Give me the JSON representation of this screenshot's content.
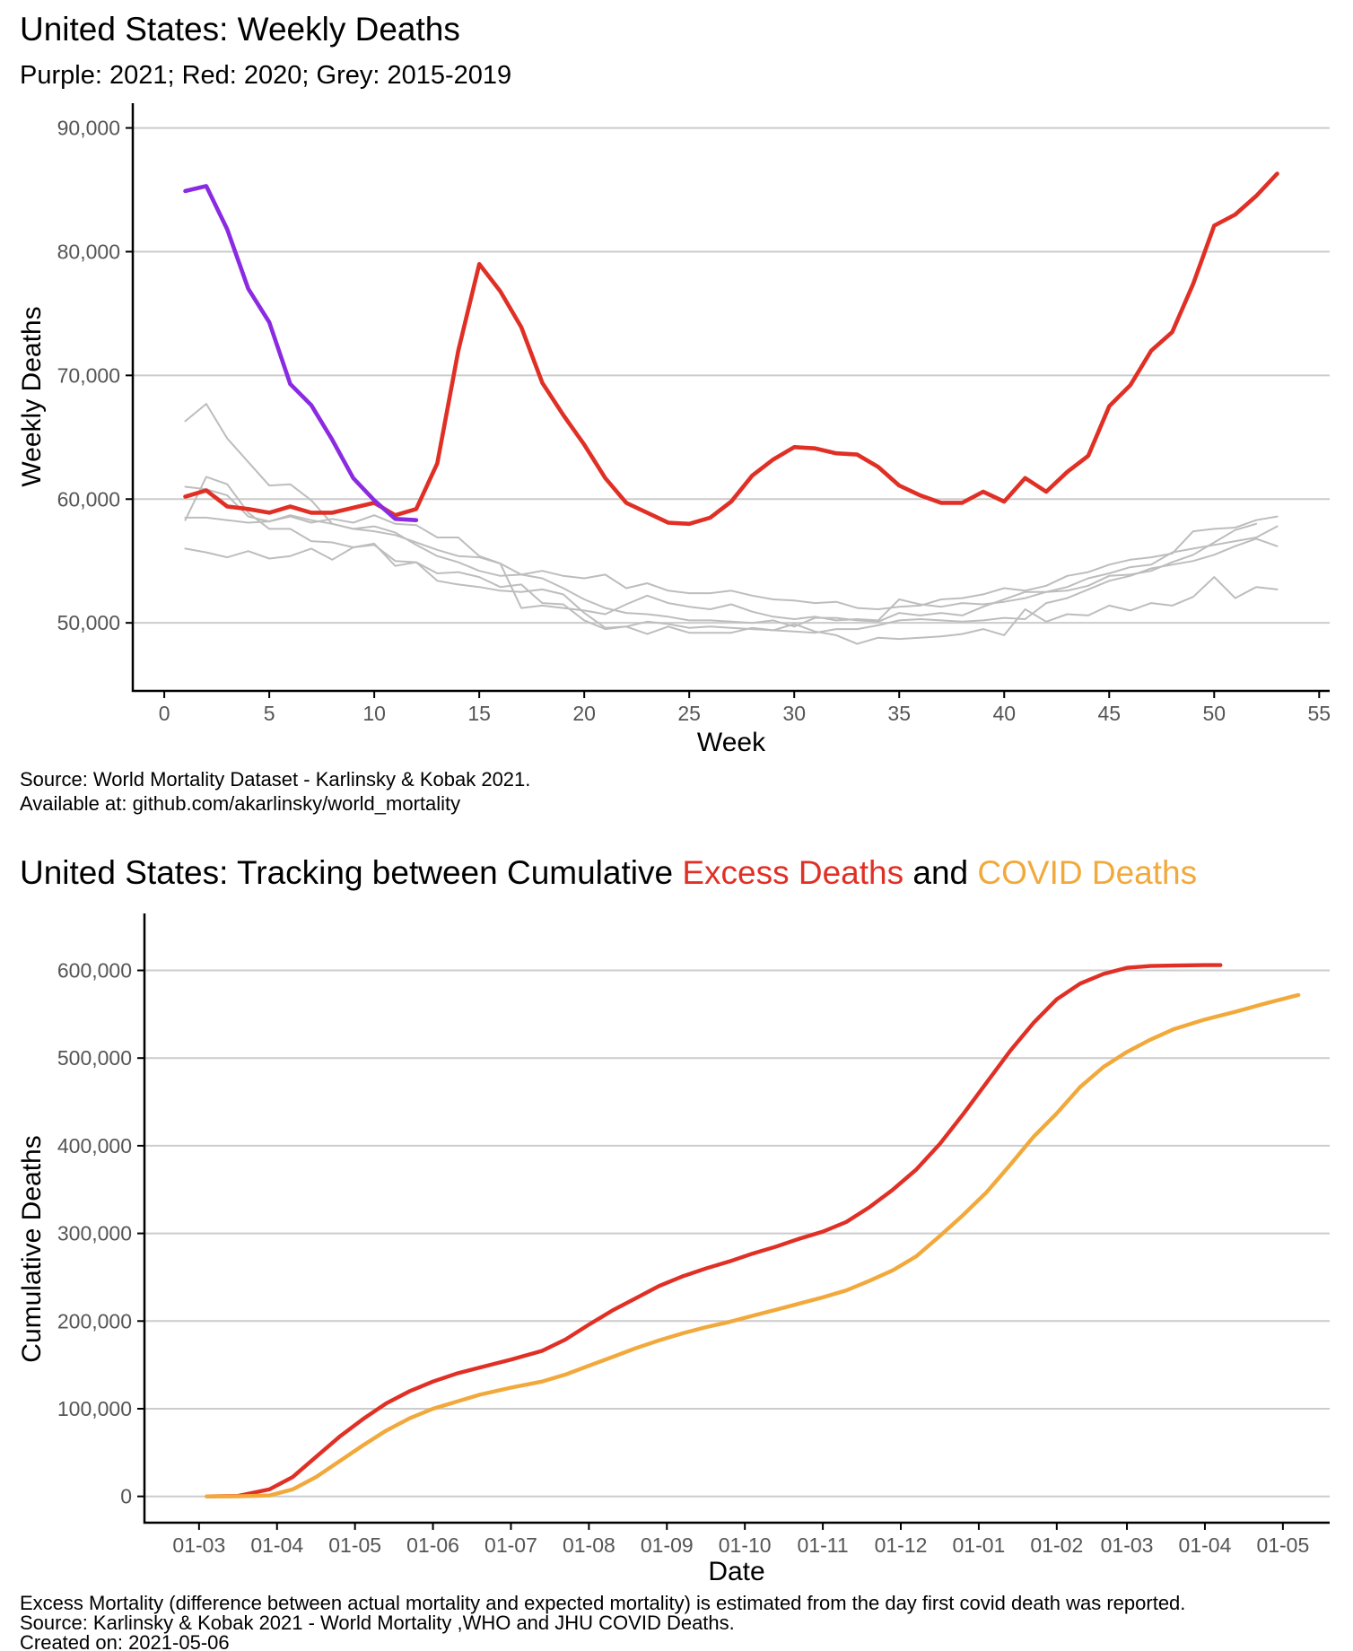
{
  "colors": {
    "year_2021": "#8A2BE2",
    "year_2020": "#E03026",
    "baseline": "#BDBDBD",
    "excess": "#E03026",
    "covid": "#F2A93B"
  },
  "chart1": {
    "title": "United States: Weekly Deaths",
    "subtitle": "Purple: 2021; Red: 2020; Grey: 2015-2019",
    "source_line1": "Source: World Mortality Dataset - Karlinsky & Kobak 2021.",
    "source_line2": "Available at: github.com/akarlinsky/world_mortality"
  },
  "chart2": {
    "title_part1": "United States: Tracking between Cumulative ",
    "title_part2": "Excess Deaths",
    "title_part3": " and ",
    "title_part4": "COVID Deaths",
    "footnote_line1": "Excess Mortality (difference between actual mortality and expected mortality) is estimated from the day first covid death was reported.",
    "footnote_line2": "Source: Karlinsky & Kobak 2021 - World Mortality ,WHO and JHU COVID Deaths.",
    "footnote_line3": "Created on: 2021-05-06"
  },
  "chart_data": [
    {
      "type": "line",
      "xlabel": "Week",
      "ylabel": "Weekly Deaths",
      "xlim": [
        -1.5,
        55.5
      ],
      "ylim": [
        44500,
        92000
      ],
      "x_ticks": [
        0,
        5,
        10,
        15,
        20,
        25,
        30,
        35,
        40,
        45,
        50,
        55
      ],
      "y_ticks": [
        50000,
        60000,
        70000,
        80000,
        90000
      ],
      "y_tick_labels": [
        "50,000",
        "60,000",
        "70,000",
        "80,000",
        "90,000"
      ],
      "grid": "horizontal",
      "series": [
        {
          "key": "2015",
          "color_key": "baseline",
          "x_start": 1,
          "values": [
            56000,
            55700,
            55300,
            55800,
            55200,
            55400,
            56000,
            55100,
            56100,
            56300,
            55000,
            54900,
            53400,
            53100,
            52900,
            52600,
            52500,
            52700,
            52300,
            50800,
            49600,
            49700,
            50100,
            49900,
            49600,
            49700,
            49600,
            49500,
            49400,
            49300,
            49200,
            49500,
            49500,
            49800,
            50200,
            50300,
            50200,
            50100,
            50200,
            50400,
            50300,
            51600,
            52000,
            52700,
            53400,
            53800,
            54400,
            54700,
            55000,
            55500,
            56200,
            56800,
            56200
          ]
        },
        {
          "key": "2016",
          "color_key": "baseline",
          "x_start": 1,
          "values": [
            58500,
            58500,
            58300,
            58100,
            58200,
            58600,
            58100,
            58400,
            58100,
            58700,
            58000,
            57900,
            56900,
            56900,
            55400,
            54800,
            53900,
            53600,
            52800,
            51900,
            51200,
            50800,
            50700,
            50500,
            50200,
            50200,
            50100,
            50000,
            50200,
            49700,
            50400,
            50400,
            50200,
            50100,
            50800,
            50600,
            50800,
            50600,
            51300,
            51900,
            52500,
            52500,
            52900,
            53600,
            54000,
            54500,
            54700,
            55700,
            56000,
            56300,
            56600,
            56900,
            57800
          ]
        },
        {
          "key": "2017",
          "color_key": "baseline",
          "x_start": 1,
          "values": [
            61000,
            60800,
            60300,
            58600,
            58200,
            58700,
            58300,
            58000,
            57600,
            57800,
            57300,
            56300,
            55400,
            54900,
            54200,
            53800,
            53900,
            54200,
            53800,
            53600,
            53900,
            52800,
            53200,
            52600,
            52400,
            52400,
            52600,
            52200,
            51900,
            51800,
            51600,
            51700,
            51200,
            51100,
            51300,
            51400,
            51900,
            52000,
            52300,
            52800,
            52600,
            53000,
            53800,
            54100,
            54700,
            55100,
            55300,
            55600,
            57400,
            57600,
            57700,
            58300,
            58600
          ]
        },
        {
          "key": "2018",
          "color_key": "baseline",
          "x_start": 1,
          "values": [
            66300,
            67700,
            64900,
            63000,
            61100,
            61200,
            59900,
            58000,
            57600,
            57400,
            57100,
            56500,
            55900,
            55400,
            55300,
            54800,
            51200,
            51400,
            51200,
            51000,
            50700,
            51500,
            52200,
            51600,
            51300,
            51100,
            51500,
            50900,
            50500,
            50300,
            50500,
            50200,
            50300,
            50200,
            51900,
            51500,
            51300,
            51600,
            51500,
            51700,
            52000,
            52500,
            52600,
            53000,
            53800,
            53900,
            54200,
            54900,
            55500,
            56500,
            57500,
            58000
          ]
        },
        {
          "key": "2019",
          "color_key": "baseline",
          "x_start": 1,
          "values": [
            58300,
            61800,
            61200,
            58900,
            57600,
            57600,
            56600,
            56500,
            56100,
            56400,
            54600,
            54900,
            54000,
            54100,
            53700,
            52900,
            53100,
            51600,
            51500,
            50200,
            49500,
            49700,
            49100,
            49700,
            49200,
            49200,
            49200,
            49600,
            49400,
            49900,
            49300,
            49000,
            48300,
            48800,
            48700,
            48800,
            48900,
            49100,
            49500,
            49000,
            51100,
            50100,
            50700,
            50600,
            51400,
            51000,
            51600,
            51400,
            52100,
            53700,
            52000,
            52900,
            52700
          ]
        },
        {
          "key": "2020",
          "color_key": "year_2020",
          "stroke": 4.6,
          "x_start": 1,
          "values": [
            60200,
            60700,
            59400,
            59200,
            58900,
            59400,
            58900,
            58900,
            59300,
            59700,
            58700,
            59200,
            62900,
            72000,
            79000,
            76800,
            73900,
            69400,
            66800,
            64400,
            61700,
            59700,
            58900,
            58100,
            58000,
            58500,
            59800,
            61900,
            63200,
            64200,
            64100,
            63700,
            63600,
            62600,
            61100,
            60300,
            59700,
            59700,
            60600,
            59800,
            61700,
            60600,
            62200,
            63500,
            67500,
            69200,
            72000,
            73500,
            77400,
            82100,
            83000,
            84500,
            86300
          ]
        },
        {
          "key": "2021",
          "color_key": "year_2021",
          "stroke": 4.6,
          "x_start": 1,
          "values": [
            84900,
            85300,
            81800,
            77000,
            74300,
            69300,
            67600,
            64800,
            61700,
            59900,
            58400,
            58300
          ]
        }
      ]
    },
    {
      "type": "line",
      "xlabel": "Date",
      "ylabel": "Cumulative Deaths",
      "xlim": [
        -0.7,
        14.5
      ],
      "ylim": [
        -30000,
        665000
      ],
      "x_tick_labels": [
        "01-03",
        "01-04",
        "01-05",
        "01-06",
        "01-07",
        "01-08",
        "01-09",
        "01-10",
        "01-11",
        "01-12",
        "01-01",
        "01-02",
        "01-03",
        "01-04",
        "01-05"
      ],
      "x_tick_positions": [
        0,
        1,
        2,
        3,
        4,
        5,
        6,
        7,
        8,
        9,
        10,
        11,
        11.9,
        12.9,
        13.9
      ],
      "y_ticks": [
        0,
        100000,
        200000,
        300000,
        400000,
        500000,
        600000
      ],
      "y_tick_labels": [
        "0",
        "100,000",
        "200,000",
        "300,000",
        "400,000",
        "500,000",
        "600,000"
      ],
      "grid": "horizontal",
      "series": [
        {
          "key": "excess",
          "name": "Excess Deaths",
          "color_key": "excess",
          "stroke": 4.4,
          "x": [
            0.1,
            0.5,
            0.9,
            1.2,
            1.5,
            1.8,
            2.1,
            2.4,
            2.7,
            3.0,
            3.3,
            3.6,
            4.0,
            4.4,
            4.7,
            5.0,
            5.3,
            5.6,
            5.9,
            6.2,
            6.5,
            6.8,
            7.1,
            7.4,
            7.7,
            8.0,
            8.3,
            8.6,
            8.9,
            9.2,
            9.5,
            9.8,
            10.1,
            10.4,
            10.7,
            11.0,
            11.3,
            11.6,
            11.9,
            12.2,
            12.5,
            12.9,
            13.1
          ],
          "y": [
            0,
            500,
            8000,
            22000,
            45000,
            68000,
            88000,
            106000,
            120000,
            131000,
            140000,
            147000,
            156000,
            166000,
            179000,
            196000,
            212000,
            226000,
            240000,
            251000,
            260000,
            268000,
            277000,
            285000,
            294000,
            302000,
            313000,
            330000,
            350000,
            373000,
            402000,
            436000,
            472000,
            508000,
            540000,
            567000,
            585000,
            596000,
            603000,
            605000,
            605500,
            606000,
            606000
          ]
        },
        {
          "key": "covid",
          "name": "COVID Deaths",
          "color_key": "covid",
          "stroke": 4.4,
          "x": [
            0.1,
            0.5,
            0.9,
            1.2,
            1.5,
            1.8,
            2.1,
            2.4,
            2.7,
            3.0,
            3.3,
            3.6,
            4.0,
            4.4,
            4.7,
            5.0,
            5.3,
            5.6,
            5.9,
            6.2,
            6.5,
            6.8,
            7.1,
            7.4,
            7.7,
            8.0,
            8.3,
            8.6,
            8.9,
            9.2,
            9.5,
            9.8,
            10.1,
            10.4,
            10.7,
            11.0,
            11.3,
            11.6,
            11.9,
            12.2,
            12.5,
            12.9,
            13.3,
            13.7,
            14.1
          ],
          "y": [
            0,
            100,
            1000,
            8000,
            22000,
            40000,
            58000,
            75000,
            89000,
            100000,
            108000,
            116000,
            124000,
            131000,
            139000,
            149000,
            159000,
            169000,
            178000,
            186000,
            193000,
            199000,
            206000,
            213000,
            220000,
            227000,
            235000,
            246000,
            258000,
            274000,
            297000,
            321000,
            347000,
            378000,
            410000,
            437000,
            467000,
            490000,
            507000,
            521000,
            533000,
            544000,
            553000,
            563000,
            572000
          ]
        }
      ]
    }
  ]
}
